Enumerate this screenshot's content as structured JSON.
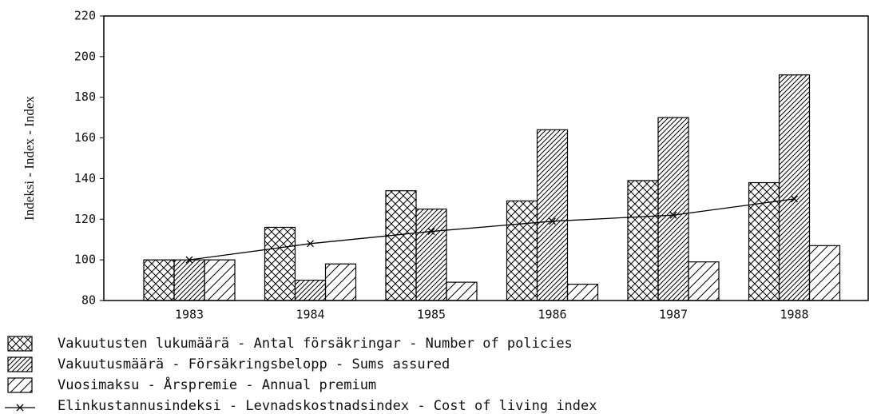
{
  "chart_data": {
    "type": "bar",
    "ylabel": "Indeksi - Index - Index",
    "categories": [
      "1983",
      "1984",
      "1985",
      "1986",
      "1987",
      "1988"
    ],
    "series": [
      {
        "name": "Vakuutusten lukumäärä - Antal försäkringar - Number of policies",
        "color": "#000000",
        "pattern": "crosshatch",
        "values": [
          100,
          116,
          134,
          129,
          139,
          138
        ]
      },
      {
        "name": "Vakuutusmäärä - Försäkringsbelopp - Sums assured",
        "color": "#000000",
        "pattern": "dense-hatch",
        "values": [
          100,
          90,
          125,
          164,
          170,
          191
        ]
      },
      {
        "name": "Vuosimaksu - Årspremie - Annual premium",
        "color": "#000000",
        "pattern": "hatch",
        "values": [
          100,
          98,
          89,
          88,
          99,
          107
        ]
      },
      {
        "name": "Elinkustannusindeksi - Levnadskostnadsindex - Cost of living index",
        "color": "#000000",
        "type": "line",
        "values": [
          100,
          108,
          114,
          119,
          122,
          130
        ]
      }
    ],
    "ylim": [
      80,
      220
    ],
    "yticks": [
      80,
      100,
      120,
      140,
      160,
      180,
      200,
      220
    ]
  }
}
